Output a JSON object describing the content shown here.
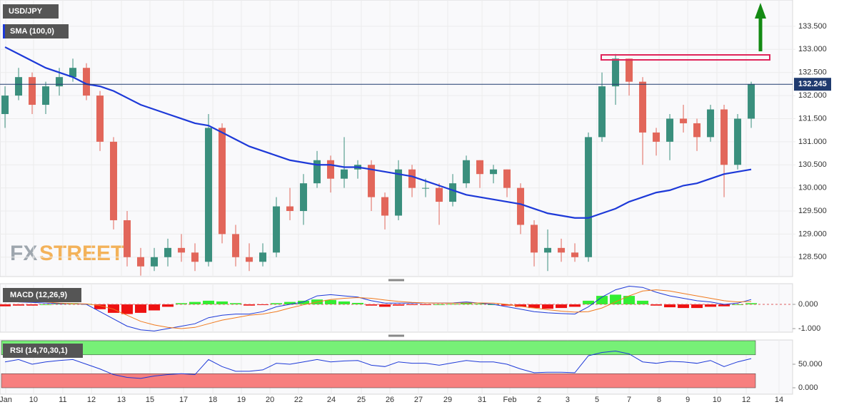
{
  "chart_data": [
    {
      "type": "candlestick",
      "title": "USD/JPY",
      "indicator": "SMA (100,0)",
      "indicator_color": "#1d39d8",
      "up_color": "#3a8f7d",
      "down_color": "#e2665a",
      "grid": true,
      "xlim": [
        -0.37,
        58.05
      ],
      "ylim": [
        128.08,
        134.07
      ],
      "yticks": [
        {
          "value": 128.5,
          "label": "128.500"
        },
        {
          "value": 129,
          "label": "129.000"
        },
        {
          "value": 129.5,
          "label": "129.500"
        },
        {
          "value": 130,
          "label": "130.000"
        },
        {
          "value": 130.5,
          "label": "130.500"
        },
        {
          "value": 131,
          "label": "131.000"
        },
        {
          "value": 131.5,
          "label": "131.500"
        },
        {
          "value": 132,
          "label": "132.000"
        },
        {
          "value": 132.5,
          "label": "132.500"
        },
        {
          "value": 133,
          "label": "133.000"
        },
        {
          "value": 133.5,
          "label": "133.500"
        }
      ],
      "last": 132.245,
      "open": [
        131.6,
        132.0,
        132.4,
        131.8,
        132.2,
        132.4,
        132.6,
        132.0,
        131.0,
        129.3,
        128.5,
        128.3,
        128.5,
        128.7,
        128.6,
        128.4,
        131.3,
        129.0,
        128.5,
        128.4,
        128.6,
        129.6,
        129.5,
        130.1,
        130.6,
        130.2,
        130.4,
        130.5,
        129.8,
        129.4,
        130.4,
        130.0,
        130.0,
        129.7,
        130.1,
        130.6,
        130.3,
        130.4,
        130.0,
        129.2,
        128.6,
        128.7,
        128.6,
        128.5,
        131.1,
        132.2,
        132.8,
        132.3,
        131.2,
        131.0,
        131.5,
        131.4,
        131.1,
        131.7,
        130.5,
        131.5
      ],
      "high": [
        132.2,
        132.6,
        132.5,
        132.3,
        132.6,
        132.8,
        132.7,
        132.1,
        131.1,
        129.5,
        128.7,
        128.7,
        128.9,
        129.0,
        128.8,
        131.6,
        131.4,
        129.2,
        128.8,
        128.8,
        129.8,
        130.0,
        130.3,
        130.8,
        130.7,
        131.1,
        130.6,
        130.6,
        129.9,
        130.6,
        130.5,
        130.2,
        130.1,
        130.3,
        130.7,
        130.6,
        130.5,
        130.4,
        130.1,
        129.3,
        129.1,
        128.9,
        128.8,
        131.2,
        132.5,
        132.9,
        132.8,
        132.4,
        131.3,
        131.6,
        131.8,
        131.5,
        131.8,
        131.8,
        131.6,
        132.3
      ],
      "low": [
        131.3,
        131.9,
        131.6,
        131.6,
        132.0,
        132.3,
        131.9,
        130.8,
        129.1,
        128.3,
        128.1,
        128.2,
        128.3,
        128.4,
        128.2,
        128.3,
        128.8,
        128.3,
        128.2,
        128.3,
        128.5,
        129.3,
        129.2,
        130.0,
        129.9,
        130.0,
        130.2,
        129.5,
        129.1,
        129.3,
        129.8,
        129.8,
        129.2,
        129.6,
        130.0,
        130.0,
        130.1,
        129.8,
        129.0,
        128.3,
        128.2,
        128.4,
        128.4,
        128.4,
        131.0,
        131.8,
        132.0,
        130.5,
        130.7,
        130.6,
        131.2,
        130.8,
        131.0,
        129.8,
        130.4,
        131.3
      ],
      "close": [
        132.0,
        132.4,
        131.8,
        132.2,
        132.4,
        132.6,
        132.0,
        131.0,
        129.3,
        128.5,
        128.3,
        128.5,
        128.7,
        128.6,
        128.4,
        131.3,
        129.0,
        128.5,
        128.4,
        128.6,
        129.6,
        129.5,
        130.1,
        130.6,
        130.2,
        130.4,
        130.5,
        129.8,
        129.4,
        130.4,
        130.0,
        130.0,
        129.7,
        130.1,
        130.6,
        130.3,
        130.4,
        130.0,
        129.2,
        128.6,
        128.7,
        128.6,
        128.5,
        131.1,
        132.2,
        132.8,
        132.3,
        131.2,
        131.0,
        131.5,
        131.4,
        131.1,
        131.7,
        130.5,
        131.5,
        132.25
      ],
      "sma": [
        133.05,
        132.9,
        132.75,
        132.6,
        132.5,
        132.4,
        132.25,
        132.2,
        132.1,
        131.95,
        131.8,
        131.7,
        131.6,
        131.5,
        131.4,
        131.35,
        131.2,
        131.05,
        130.9,
        130.8,
        130.7,
        130.6,
        130.55,
        130.5,
        130.5,
        130.45,
        130.45,
        130.4,
        130.35,
        130.3,
        130.25,
        130.15,
        130.05,
        129.95,
        129.85,
        129.8,
        129.75,
        129.7,
        129.65,
        129.55,
        129.45,
        129.4,
        129.35,
        129.35,
        129.45,
        129.55,
        129.7,
        129.8,
        129.9,
        129.95,
        130.05,
        130.1,
        130.2,
        130.3,
        130.35,
        130.4
      ]
    },
    {
      "type": "macd",
      "title": "MACD (12,26,9)",
      "xlim": [
        -0.37,
        58.05
      ],
      "ylim": [
        -1.147,
        0.853
      ],
      "yticks": [
        {
          "value": 0,
          "label": "0.000"
        },
        {
          "value": -1,
          "label": "-1.000"
        }
      ],
      "series": [
        {
          "name": "MACD",
          "color": "#1d39d8",
          "values": [
            0.2,
            0.1,
            0.08,
            0.05,
            0.03,
            0.03,
            0.0,
            -0.3,
            -0.6,
            -0.9,
            -1.05,
            -1.1,
            -1.0,
            -0.9,
            -0.8,
            -0.55,
            -0.45,
            -0.4,
            -0.4,
            -0.3,
            -0.1,
            0.0,
            0.1,
            0.35,
            0.4,
            0.35,
            0.3,
            0.15,
            0.05,
            0.05,
            0.05,
            0.06,
            0.05,
            0.06,
            0.1,
            0.05,
            0.0,
            -0.1,
            -0.2,
            -0.3,
            -0.35,
            -0.38,
            -0.4,
            -0.1,
            0.3,
            0.6,
            0.75,
            0.7,
            0.5,
            0.35,
            0.25,
            0.15,
            0.1,
            0.0,
            0.05,
            0.2
          ]
        },
        {
          "name": "Signal",
          "color": "#f07a1e",
          "values": [
            0.2,
            0.18,
            0.15,
            0.1,
            0.05,
            0.03,
            0.02,
            -0.05,
            -0.2,
            -0.45,
            -0.7,
            -0.85,
            -0.95,
            -1.0,
            -0.95,
            -0.8,
            -0.65,
            -0.55,
            -0.45,
            -0.4,
            -0.3,
            -0.15,
            -0.02,
            0.1,
            0.2,
            0.25,
            0.28,
            0.25,
            0.18,
            0.12,
            0.08,
            0.06,
            0.05,
            0.05,
            0.06,
            0.06,
            0.05,
            0.0,
            -0.08,
            -0.15,
            -0.22,
            -0.28,
            -0.32,
            -0.3,
            -0.15,
            0.1,
            0.35,
            0.55,
            0.6,
            0.55,
            0.45,
            0.35,
            0.25,
            0.15,
            0.1,
            0.12
          ]
        }
      ],
      "histogram": [
        -0.08,
        -0.05,
        -0.05,
        0.0,
        0.03,
        0.05,
        0.02,
        -0.2,
        -0.35,
        -0.4,
        -0.35,
        -0.25,
        -0.1,
        0.05,
        0.1,
        0.15,
        0.12,
        0.05,
        -0.05,
        -0.03,
        0.05,
        0.1,
        0.15,
        0.2,
        0.18,
        0.12,
        0.06,
        -0.05,
        -0.1,
        -0.05,
        -0.02,
        -0.02,
        0.0,
        0.02,
        0.05,
        0.03,
        0.0,
        -0.05,
        -0.1,
        -0.15,
        -0.18,
        -0.15,
        -0.1,
        0.15,
        0.35,
        0.4,
        0.35,
        0.15,
        -0.05,
        -0.12,
        -0.15,
        -0.15,
        -0.1,
        -0.08,
        0.0,
        0.05
      ],
      "up_color": "#33ee33",
      "down_color": "#ee1111"
    },
    {
      "type": "rsi",
      "title": "RSI (14,70,30,1)",
      "color": "#1d39d8",
      "xlim": [
        -0.37,
        58.05
      ],
      "ylim": [
        -13.6,
        101.5
      ],
      "yticks": [
        {
          "value": 50,
          "label": "50.000"
        },
        {
          "value": 0,
          "label": "0.000"
        }
      ],
      "overbought": 70,
      "oversold": 30,
      "zone_top": 100,
      "zone_bottom": 0,
      "values": [
        55,
        60,
        50,
        55,
        58,
        60,
        50,
        40,
        28,
        22,
        20,
        25,
        28,
        30,
        28,
        60,
        45,
        35,
        35,
        38,
        52,
        50,
        55,
        60,
        55,
        57,
        58,
        48,
        45,
        55,
        52,
        52,
        48,
        53,
        58,
        55,
        55,
        50,
        40,
        32,
        33,
        33,
        32,
        68,
        75,
        78,
        72,
        55,
        52,
        56,
        55,
        52,
        58,
        45,
        55,
        62
      ],
      "xticks": [
        {
          "value": 0.05,
          "label": "Jan"
        },
        {
          "value": 2.1,
          "label": "10"
        },
        {
          "value": 4.26,
          "label": "11"
        },
        {
          "value": 6.37,
          "label": "12"
        },
        {
          "value": 8.58,
          "label": "13"
        },
        {
          "value": 10.68,
          "label": "15"
        },
        {
          "value": 13.16,
          "label": "17"
        },
        {
          "value": 15.32,
          "label": "18"
        },
        {
          "value": 17.42,
          "label": "19"
        },
        {
          "value": 19.53,
          "label": "20"
        },
        {
          "value": 21.63,
          "label": "22"
        },
        {
          "value": 24.05,
          "label": "24"
        },
        {
          "value": 26.26,
          "label": "25"
        },
        {
          "value": 28.37,
          "label": "26"
        },
        {
          "value": 30.47,
          "label": "27"
        },
        {
          "value": 32.63,
          "label": "29"
        },
        {
          "value": 35.16,
          "label": "31"
        },
        {
          "value": 37.21,
          "label": "Feb"
        },
        {
          "value": 39.37,
          "label": "2"
        },
        {
          "value": 41.47,
          "label": "3"
        },
        {
          "value": 43.63,
          "label": "5"
        },
        {
          "value": 46.0,
          "label": "7"
        },
        {
          "value": 48.21,
          "label": "8"
        },
        {
          "value": 50.32,
          "label": "9"
        },
        {
          "value": 52.47,
          "label": "10"
        },
        {
          "value": 54.63,
          "label": "12"
        },
        {
          "value": 57.05,
          "label": "14"
        }
      ]
    }
  ]
}
